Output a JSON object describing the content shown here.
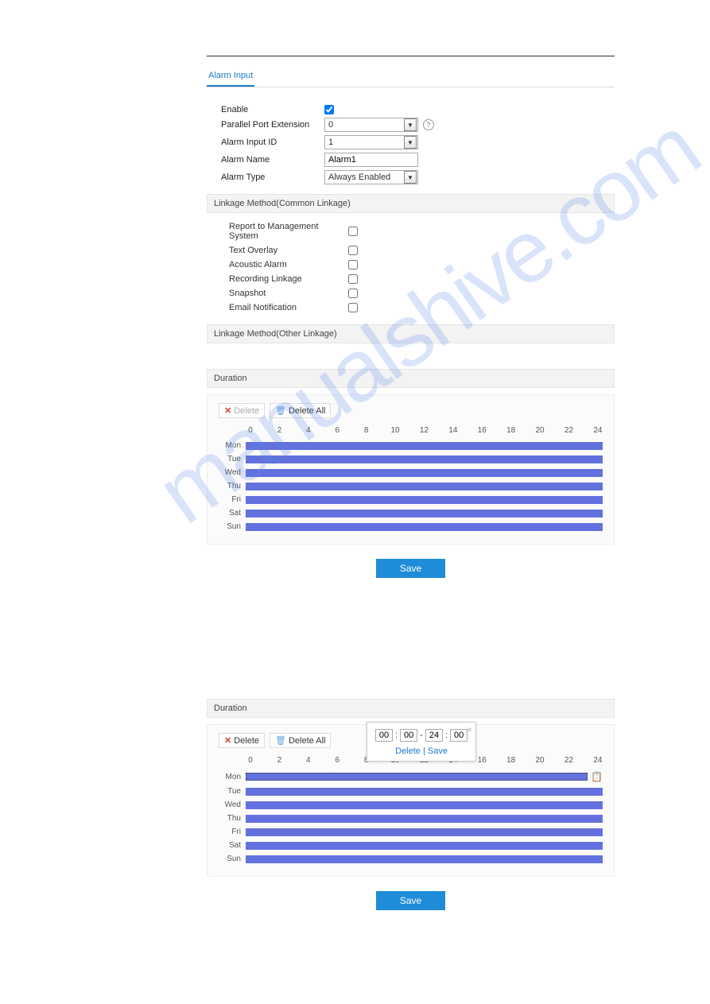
{
  "tab": {
    "label": "Alarm Input"
  },
  "form": {
    "enable_label": "Enable",
    "enable_checked": true,
    "ppe_label": "Parallel Port Extension",
    "ppe_value": "0",
    "aid_label": "Alarm Input ID",
    "aid_value": "1",
    "name_label": "Alarm Name",
    "name_value": "Alarm1",
    "type_label": "Alarm Type",
    "type_value": "Always Enabled"
  },
  "sections": {
    "common": "Linkage Method(Common Linkage)",
    "other": "Linkage Method(Other Linkage)",
    "duration": "Duration"
  },
  "linkage": [
    "Report to Management System",
    "Text Overlay",
    "Acoustic Alarm",
    "Recording Linkage",
    "Snapshot",
    "Email Notification"
  ],
  "toolbar": {
    "delete": "Delete",
    "delete_all": "Delete All"
  },
  "ticks": [
    "0",
    "2",
    "4",
    "6",
    "8",
    "10",
    "12",
    "14",
    "16",
    "18",
    "20",
    "22",
    "24"
  ],
  "days": [
    "Mon",
    "Tue",
    "Wed",
    "Thu",
    "Fri",
    "Sat",
    "Sun"
  ],
  "bar_color": "#6371de",
  "save": "Save",
  "popup": {
    "h1": "00",
    "m1": "00",
    "h2": "24",
    "m2": "00",
    "delete": "Delete",
    "save": "Save"
  },
  "watermark": "manualshive.com"
}
